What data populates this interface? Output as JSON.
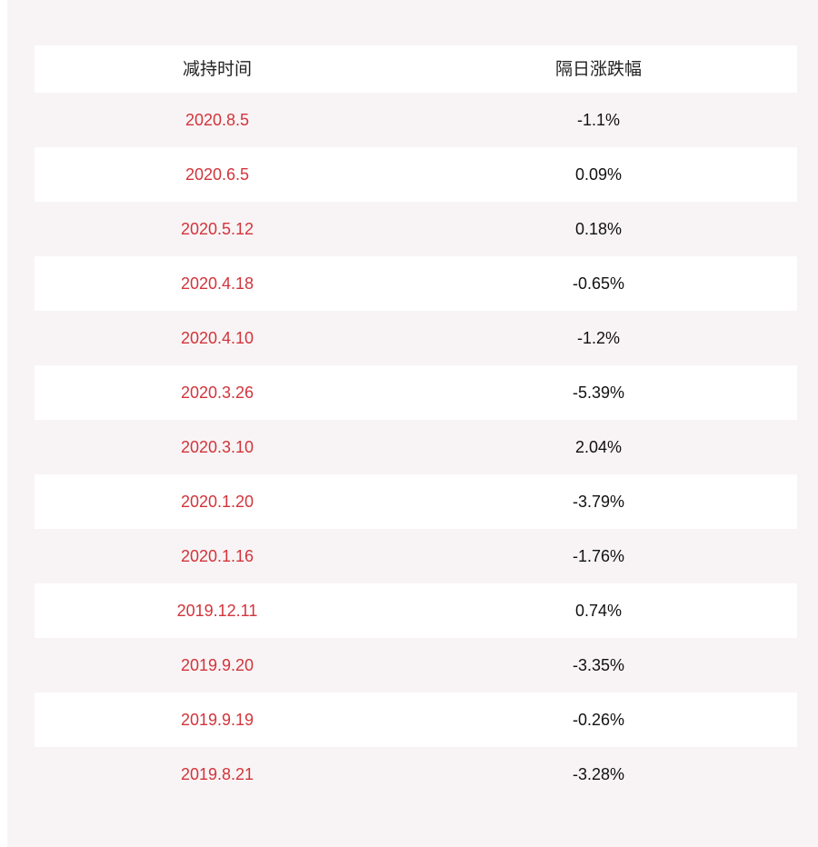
{
  "table": {
    "headers": [
      "减持时间",
      "隔日涨跌幅"
    ],
    "rows": [
      {
        "date": "2020.8.5",
        "change": "-1.1%"
      },
      {
        "date": "2020.6.5",
        "change": "0.09%"
      },
      {
        "date": "2020.5.12",
        "change": "0.18%"
      },
      {
        "date": "2020.4.18",
        "change": "-0.65%"
      },
      {
        "date": "2020.4.10",
        "change": "-1.2%"
      },
      {
        "date": "2020.3.26",
        "change": "-5.39%"
      },
      {
        "date": "2020.3.10",
        "change": "2.04%"
      },
      {
        "date": "2020.1.20",
        "change": "-3.79%"
      },
      {
        "date": "2020.1.16",
        "change": "-1.76%"
      },
      {
        "date": "2019.12.11",
        "change": "0.74%"
      },
      {
        "date": "2019.9.20",
        "change": "-3.35%"
      },
      {
        "date": "2019.9.19",
        "change": "-0.26%"
      },
      {
        "date": "2019.8.21",
        "change": "-3.28%"
      }
    ]
  },
  "colors": {
    "date_text": "#d2343b",
    "panel_bg": "#f8f4f5",
    "row_alt_bg": "#ffffff"
  }
}
